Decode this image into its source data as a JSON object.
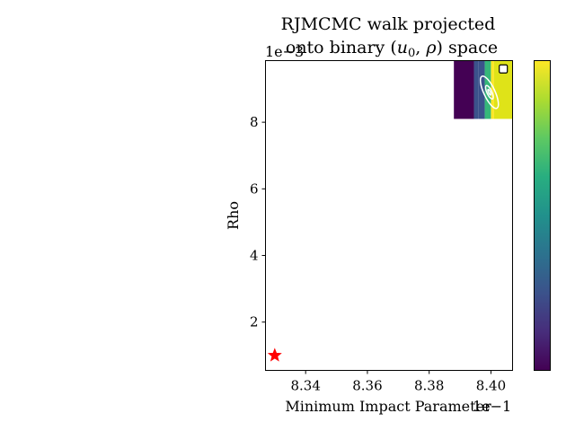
{
  "chart_data": {
    "type": "heatmap",
    "title_line1": "RJMCMC walk projected",
    "title_line2_prefix": "onto binary (",
    "title_line2_u": "u",
    "title_line2_u_sub": "0",
    "title_line2_sep": ", ",
    "title_line2_rho": "ρ",
    "title_line2_suffix": ") space",
    "xlabel": "Minimum Impact Parameter",
    "ylabel": "Rho",
    "x_offset_label": "1e−1",
    "y_offset_label": "1e−3",
    "xlim": [
      0.8327,
      0.8407
    ],
    "ylim": [
      0.00055,
      0.00985
    ],
    "x_ticks": [
      0.834,
      0.836,
      0.838,
      0.84
    ],
    "x_tick_labels": [
      "8.34",
      "8.36",
      "8.38",
      "8.40"
    ],
    "y_ticks": [
      0.002,
      0.004,
      0.006,
      0.008
    ],
    "y_tick_labels": [
      "2",
      "4",
      "6",
      "8"
    ],
    "heatmap": {
      "x_edges": [
        0.8388,
        0.83945,
        0.8396,
        0.8398,
        0.84,
        0.8401,
        0.8407
      ],
      "y_range": [
        0.0081,
        0.00985
      ],
      "levels": [
        0.0,
        0.2,
        0.3,
        0.6,
        0.9,
        1.0
      ],
      "colors": [
        "#440154",
        "#3b528b",
        "#3b528b",
        "#35b779",
        "#fde725",
        "#dfe318"
      ]
    },
    "contours": [
      {
        "cx": 0.83995,
        "cy": 0.0089,
        "rx": 0.00018,
        "ry": 0.00053
      },
      {
        "cx": 0.83995,
        "cy": 0.0089,
        "rx": 8e-05,
        "ry": 0.00022
      },
      {
        "cx": 0.83995,
        "cy": 0.0089,
        "rx": 3e-05,
        "ry": 9e-05
      }
    ],
    "marker_star": {
      "x": 0.833,
      "y": 0.001,
      "color": "#ff0000"
    },
    "marker_square": {
      "x": 0.8404,
      "y": 0.0096,
      "color": "#ffffff"
    },
    "colorbar": {
      "colormap": "viridis",
      "ticks_visible": false
    }
  }
}
